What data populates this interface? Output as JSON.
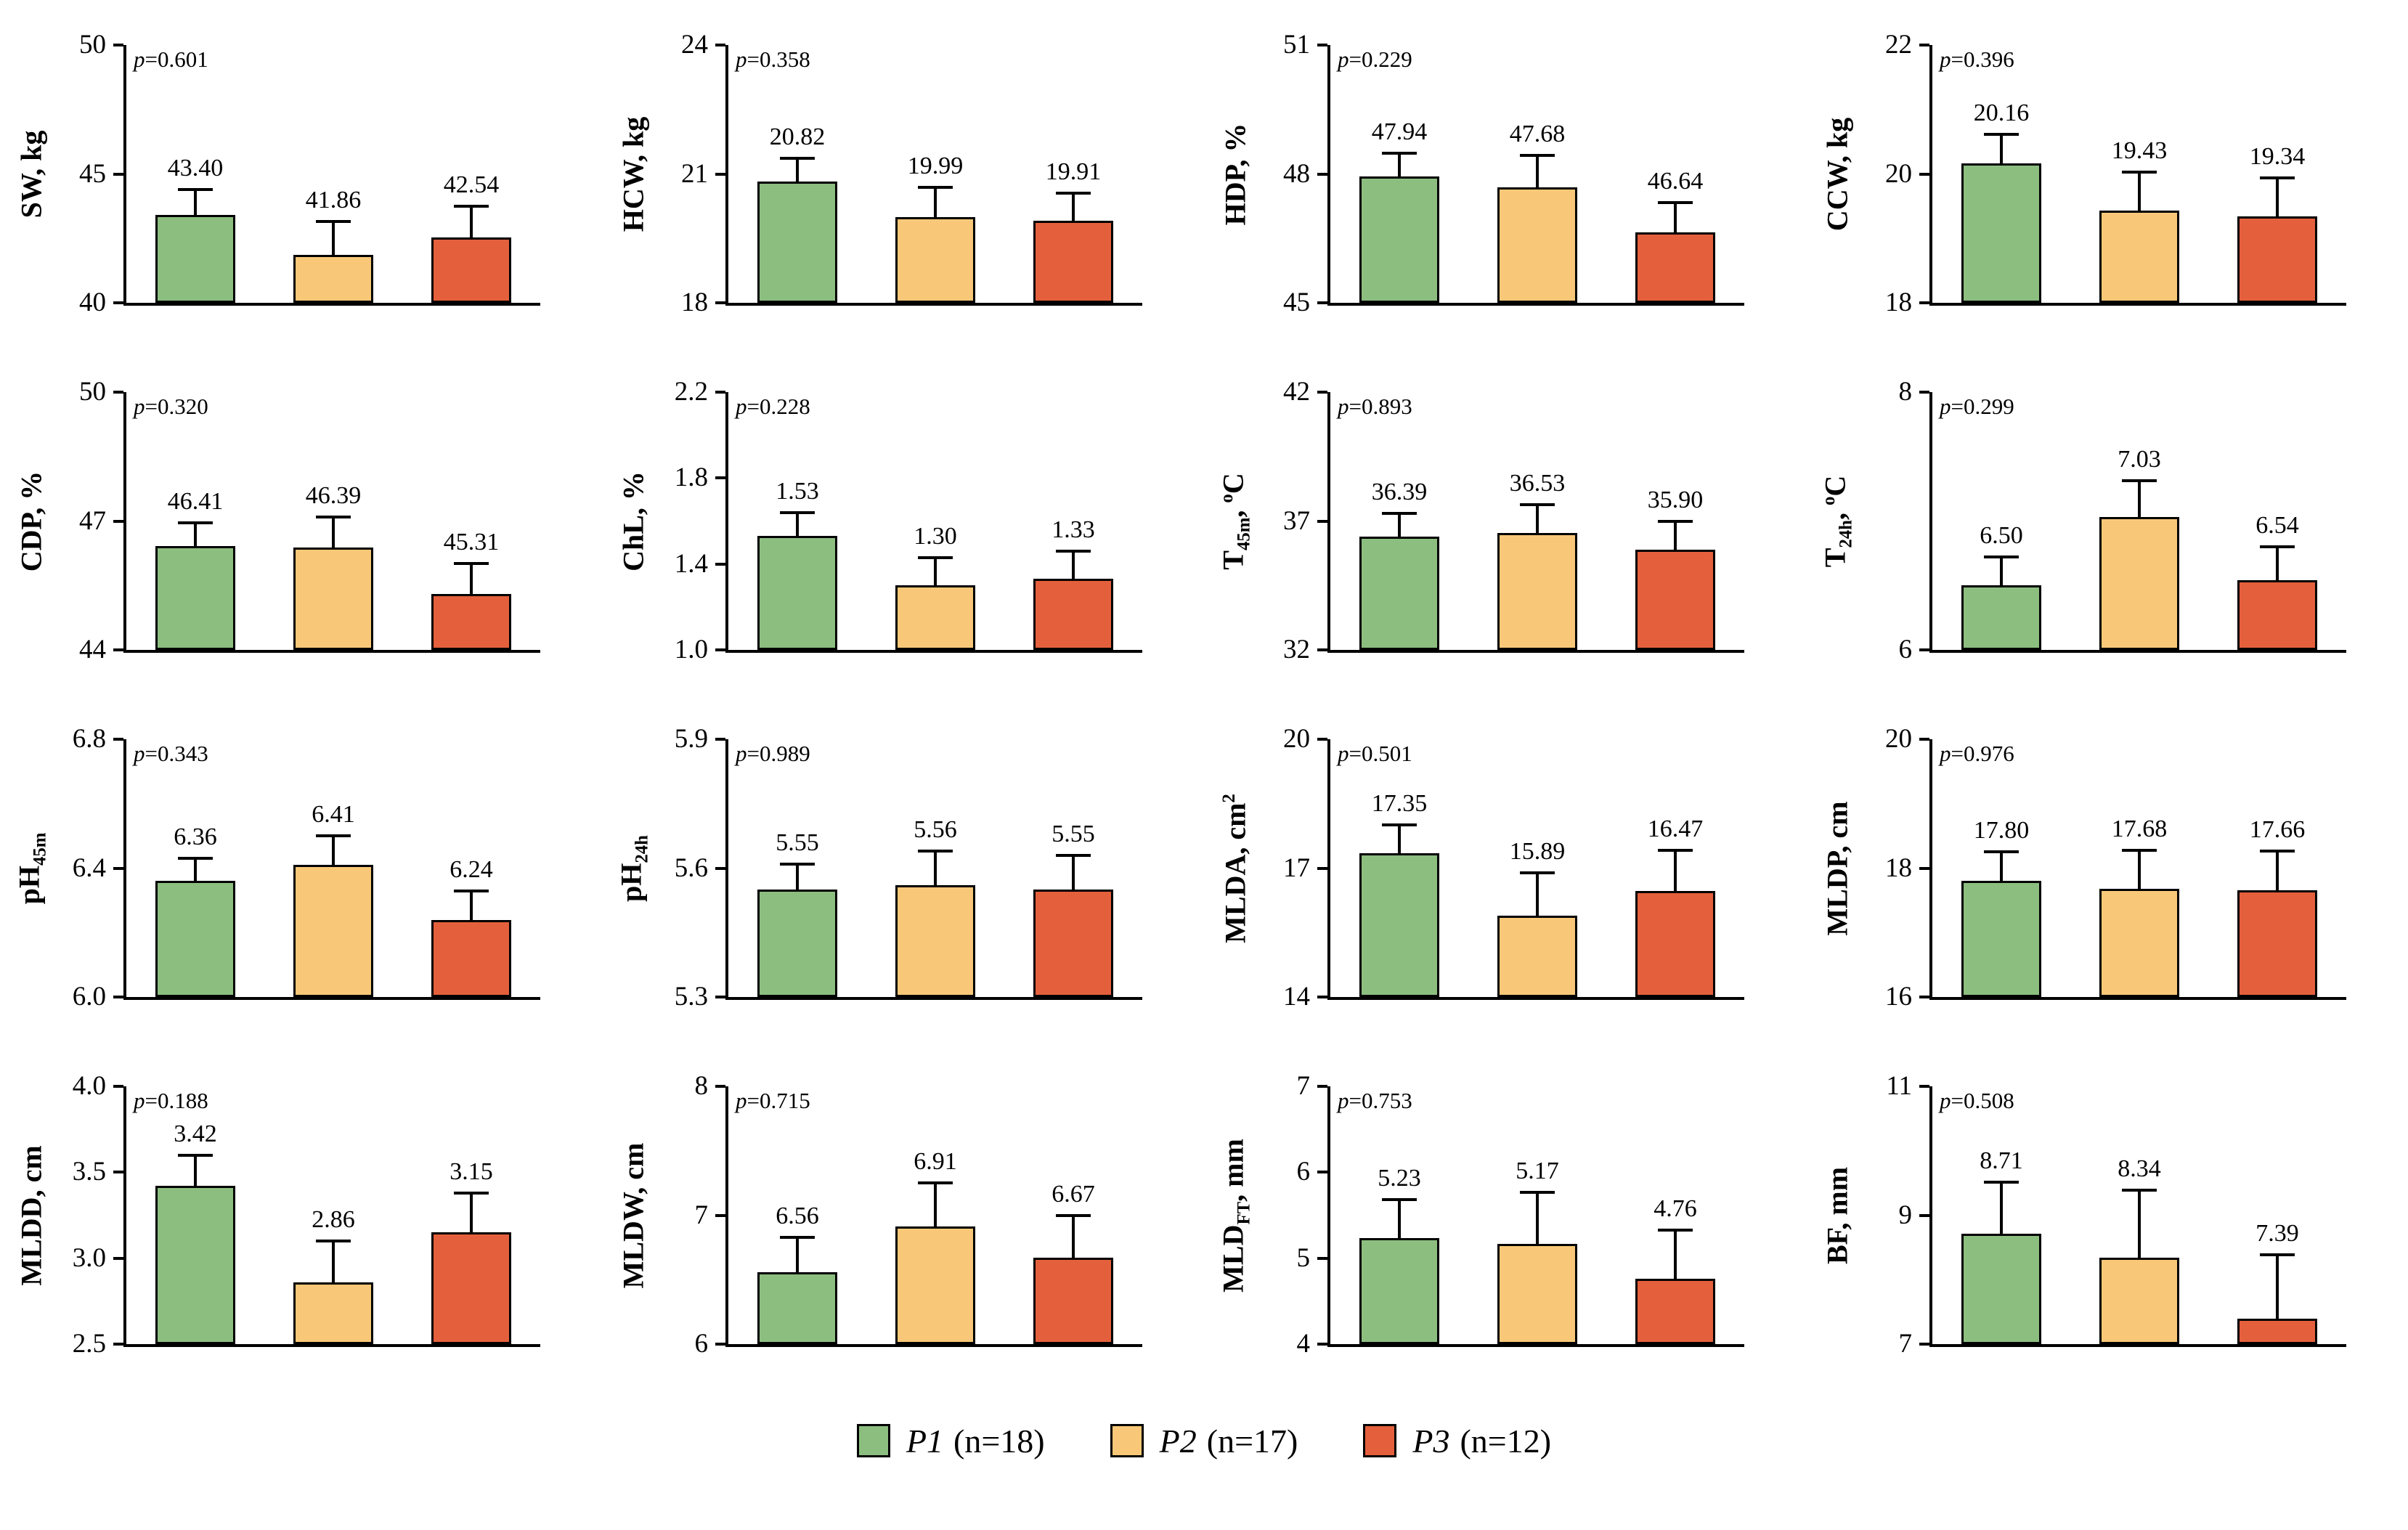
{
  "figure": {
    "background": "#ffffff"
  },
  "legend": {
    "position": "bottom",
    "items": [
      {
        "name": "P1",
        "count": "(n=18)",
        "color": "#8CBE80"
      },
      {
        "name": "P2",
        "count": "(n=17)",
        "color": "#F8C878"
      },
      {
        "name": "P3",
        "count": "(n=12)",
        "color": "#E4603C"
      }
    ]
  },
  "chart_data": [
    {
      "type": "bar",
      "ylabel": "SW, kg",
      "p_label": "p=0.601",
      "ylim": [
        40,
        50
      ],
      "yticks": [
        "40",
        "45",
        "50"
      ],
      "grid": false,
      "categories": [
        "P1",
        "P2",
        "P3"
      ],
      "values": [
        43.4,
        41.86,
        42.54
      ],
      "value_labels": [
        "43.40",
        "41.86",
        "42.54"
      ],
      "errors": [
        1.0,
        1.3,
        1.2
      ]
    },
    {
      "type": "bar",
      "ylabel": "HCW, kg",
      "p_label": "p=0.358",
      "ylim": [
        18,
        24
      ],
      "yticks": [
        "18",
        "21",
        "24"
      ],
      "grid": false,
      "categories": [
        "P1",
        "P2",
        "P3"
      ],
      "values": [
        20.82,
        19.99,
        19.91
      ],
      "value_labels": [
        "20.82",
        "19.99",
        "19.91"
      ],
      "errors": [
        0.55,
        0.7,
        0.65
      ]
    },
    {
      "type": "bar",
      "ylabel": "HDP, %",
      "p_label": "p=0.229",
      "ylim": [
        45,
        51
      ],
      "yticks": [
        "45",
        "48",
        "51"
      ],
      "grid": false,
      "categories": [
        "P1",
        "P2",
        "P3"
      ],
      "values": [
        47.94,
        47.68,
        46.64
      ],
      "value_labels": [
        "47.94",
        "47.68",
        "46.64"
      ],
      "errors": [
        0.55,
        0.75,
        0.7
      ]
    },
    {
      "type": "bar",
      "ylabel": "CCW, kg",
      "p_label": "p=0.396",
      "ylim": [
        18,
        22
      ],
      "yticks": [
        "18",
        "20",
        "22"
      ],
      "grid": false,
      "categories": [
        "P1",
        "P2",
        "P3"
      ],
      "values": [
        20.16,
        19.43,
        19.34
      ],
      "value_labels": [
        "20.16",
        "19.43",
        "19.34"
      ],
      "errors": [
        0.45,
        0.6,
        0.6
      ]
    },
    {
      "type": "bar",
      "ylabel": "CDP, %",
      "p_label": "p=0.320",
      "ylim": [
        44,
        50
      ],
      "yticks": [
        "44",
        "47",
        "50"
      ],
      "grid": false,
      "categories": [
        "P1",
        "P2",
        "P3"
      ],
      "values": [
        46.41,
        46.39,
        45.31
      ],
      "value_labels": [
        "46.41",
        "46.39",
        "45.31"
      ],
      "errors": [
        0.55,
        0.7,
        0.7
      ]
    },
    {
      "type": "bar",
      "ylabel": "ChL, %",
      "p_label": "p=0.228",
      "ylim": [
        1.0,
        2.2
      ],
      "yticks": [
        "1.0",
        "1.4",
        "1.8",
        "2.2"
      ],
      "grid": false,
      "categories": [
        "P1",
        "P2",
        "P3"
      ],
      "values": [
        1.53,
        1.3,
        1.33
      ],
      "value_labels": [
        "1.53",
        "1.30",
        "1.33"
      ],
      "errors": [
        0.11,
        0.13,
        0.13
      ]
    },
    {
      "type": "bar",
      "ylabel": "T~45m~, ^o^C",
      "p_label": "p=0.893",
      "ylim": [
        32,
        42
      ],
      "yticks": [
        "32",
        "37",
        "42"
      ],
      "grid": false,
      "categories": [
        "P1",
        "P2",
        "P3"
      ],
      "values": [
        36.39,
        36.53,
        35.9
      ],
      "value_labels": [
        "36.39",
        "36.53",
        "35.90"
      ],
      "errors": [
        0.9,
        1.1,
        1.1
      ]
    },
    {
      "type": "bar",
      "ylabel": "T~24h~, ^o^C",
      "p_label": "p=0.299",
      "ylim": [
        6,
        8
      ],
      "yticks": [
        "6",
        "8"
      ],
      "grid": false,
      "categories": [
        "P1",
        "P2",
        "P3"
      ],
      "values": [
        6.5,
        7.03,
        6.54
      ],
      "value_labels": [
        "6.50",
        "7.03",
        "6.54"
      ],
      "errors": [
        0.22,
        0.28,
        0.26
      ]
    },
    {
      "type": "bar",
      "ylabel": "pH~45m~",
      "p_label": "p=0.343",
      "ylim": [
        6.0,
        6.8
      ],
      "yticks": [
        "6.0",
        "6.4",
        "6.8"
      ],
      "grid": false,
      "categories": [
        "P1",
        "P2",
        "P3"
      ],
      "values": [
        6.36,
        6.41,
        6.24
      ],
      "value_labels": [
        "6.36",
        "6.41",
        "6.24"
      ],
      "errors": [
        0.07,
        0.09,
        0.09
      ]
    },
    {
      "type": "bar",
      "ylabel": "pH~24h~",
      "p_label": "p=0.989",
      "ylim": [
        5.3,
        5.9
      ],
      "yticks": [
        "5.3",
        "5.6",
        "5.9"
      ],
      "grid": false,
      "categories": [
        "P1",
        "P2",
        "P3"
      ],
      "values": [
        5.55,
        5.56,
        5.55
      ],
      "value_labels": [
        "5.55",
        "5.56",
        "5.55"
      ],
      "errors": [
        0.06,
        0.08,
        0.08
      ]
    },
    {
      "type": "bar",
      "ylabel": "MLDA, cm^2^",
      "p_label": "p=0.501",
      "ylim": [
        14,
        20
      ],
      "yticks": [
        "14",
        "17",
        "20"
      ],
      "grid": false,
      "categories": [
        "P1",
        "P2",
        "P3"
      ],
      "values": [
        17.35,
        15.89,
        16.47
      ],
      "value_labels": [
        "17.35",
        "15.89",
        "16.47"
      ],
      "errors": [
        0.65,
        1.0,
        0.95
      ]
    },
    {
      "type": "bar",
      "ylabel": "MLDP, cm",
      "p_label": "p=0.976",
      "ylim": [
        16,
        20
      ],
      "yticks": [
        "16",
        "18",
        "20"
      ],
      "grid": false,
      "categories": [
        "P1",
        "P2",
        "P3"
      ],
      "values": [
        17.8,
        17.68,
        17.66
      ],
      "value_labels": [
        "17.80",
        "17.68",
        "17.66"
      ],
      "errors": [
        0.45,
        0.6,
        0.6
      ]
    },
    {
      "type": "bar",
      "ylabel": "MLDD, cm",
      "p_label": "p=0.188",
      "ylim": [
        2.5,
        4.0
      ],
      "yticks": [
        "2.5",
        "3.0",
        "3.5",
        "4.0"
      ],
      "grid": false,
      "categories": [
        "P1",
        "P2",
        "P3"
      ],
      "values": [
        3.42,
        2.86,
        3.15
      ],
      "value_labels": [
        "3.42",
        "2.86",
        "3.15"
      ],
      "errors": [
        0.18,
        0.24,
        0.23
      ]
    },
    {
      "type": "bar",
      "ylabel": "MLDW, cm",
      "p_label": "p=0.715",
      "ylim": [
        6,
        8
      ],
      "yticks": [
        "6",
        "7",
        "8"
      ],
      "grid": false,
      "categories": [
        "P1",
        "P2",
        "P3"
      ],
      "values": [
        6.56,
        6.91,
        6.67
      ],
      "value_labels": [
        "6.56",
        "6.91",
        "6.67"
      ],
      "errors": [
        0.27,
        0.34,
        0.33
      ]
    },
    {
      "type": "bar",
      "ylabel": "MLD~FT~, mm",
      "p_label": "p=0.753",
      "ylim": [
        4,
        7
      ],
      "yticks": [
        "4",
        "5",
        "6",
        "7"
      ],
      "grid": false,
      "categories": [
        "P1",
        "P2",
        "P3"
      ],
      "values": [
        5.23,
        5.17,
        4.76
      ],
      "value_labels": [
        "5.23",
        "5.17",
        "4.76"
      ],
      "errors": [
        0.45,
        0.6,
        0.57
      ]
    },
    {
      "type": "bar",
      "ylabel": "BF, mm",
      "p_label": "p=0.508",
      "ylim": [
        7,
        11
      ],
      "yticks": [
        "7",
        "9",
        "11"
      ],
      "grid": false,
      "categories": [
        "P1",
        "P2",
        "P3"
      ],
      "values": [
        8.71,
        8.34,
        7.39
      ],
      "value_labels": [
        "8.71",
        "8.34",
        "7.39"
      ],
      "errors": [
        0.8,
        1.05,
        1.0
      ]
    }
  ]
}
